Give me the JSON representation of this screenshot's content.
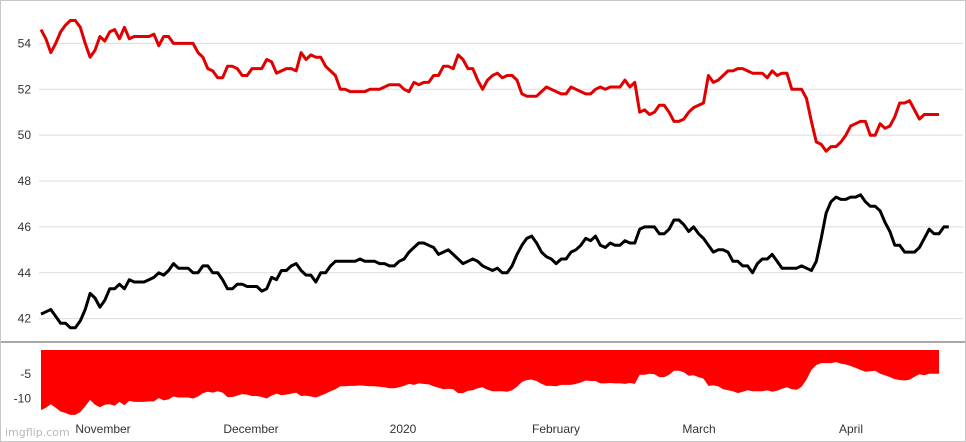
{
  "chart_data": [
    {
      "type": "line",
      "x_labels": [
        "November",
        "December",
        "2020",
        "February",
        "March",
        "April"
      ],
      "y_ticks": [
        42,
        44,
        46,
        48,
        50,
        52,
        54
      ],
      "ylim": [
        41.2,
        55.5
      ],
      "grid": true,
      "series": [
        {
          "color": "#e00000",
          "values": [
            54.6,
            54.2,
            53.6,
            54.0,
            54.5,
            54.8,
            55.0,
            55.0,
            54.7,
            54.0,
            53.4,
            53.7,
            54.3,
            54.1,
            54.5,
            54.6,
            54.2,
            54.7,
            54.2,
            54.3,
            54.3,
            54.3,
            54.3,
            54.4,
            53.9,
            54.3,
            54.3,
            54.0,
            54.0,
            54.0,
            54.0,
            54.0,
            53.6,
            53.4,
            52.9,
            52.8,
            52.5,
            52.5,
            53.0,
            53.0,
            52.9,
            52.6,
            52.6,
            52.9,
            52.9,
            52.9,
            53.3,
            53.2,
            52.7,
            52.8,
            52.9,
            52.9,
            52.8,
            53.6,
            53.3,
            53.5,
            53.4,
            53.4,
            53.0,
            52.8,
            52.6,
            52.0,
            52.0,
            51.9,
            51.9,
            51.9,
            51.9,
            52.0,
            52.0,
            52.0,
            52.1,
            52.2,
            52.2,
            52.2,
            52.0,
            51.9,
            52.3,
            52.2,
            52.3,
            52.3,
            52.6,
            52.6,
            53.0,
            53.0,
            52.9,
            53.5,
            53.3,
            52.9,
            52.9,
            52.4,
            52.0,
            52.4,
            52.6,
            52.7,
            52.5,
            52.6,
            52.6,
            52.4,
            51.8,
            51.7,
            51.7,
            51.7,
            51.9,
            52.1,
            52.0,
            51.9,
            51.8,
            51.8,
            52.1,
            52.0,
            51.9,
            51.8,
            51.8,
            52.0,
            52.1,
            52.0,
            52.1,
            52.1,
            52.1,
            52.4,
            52.1,
            52.3,
            51.0,
            51.1,
            50.9,
            51.0,
            51.3,
            51.3,
            51.0,
            50.6,
            50.6,
            50.7,
            51.0,
            51.2,
            51.3,
            51.4,
            52.6,
            52.3,
            52.4,
            52.6,
            52.8,
            52.8,
            52.9,
            52.9,
            52.8,
            52.7,
            52.7,
            52.7,
            52.5,
            52.8,
            52.6,
            52.7,
            52.7,
            52.0,
            52.0,
            52.0,
            51.6,
            50.6,
            49.7,
            49.6,
            49.3,
            49.5,
            49.5,
            49.7,
            50.0,
            50.4,
            50.5,
            50.6,
            50.6,
            50.0,
            50.0,
            50.5,
            50.3,
            50.4,
            50.8,
            51.4,
            51.4,
            51.5,
            51.1,
            50.7,
            50.9,
            50.9,
            50.9,
            50.9
          ]
        },
        {
          "color": "#000000",
          "values": [
            42.2,
            42.3,
            42.4,
            42.1,
            41.8,
            41.8,
            41.6,
            41.6,
            41.9,
            42.4,
            43.1,
            42.9,
            42.5,
            42.8,
            43.3,
            43.3,
            43.5,
            43.3,
            43.7,
            43.6,
            43.6,
            43.6,
            43.7,
            43.8,
            44.0,
            43.9,
            44.1,
            44.4,
            44.2,
            44.2,
            44.2,
            44.0,
            44.0,
            44.3,
            44.3,
            44.0,
            44.0,
            43.7,
            43.3,
            43.3,
            43.5,
            43.5,
            43.4,
            43.4,
            43.4,
            43.2,
            43.3,
            43.8,
            43.7,
            44.1,
            44.1,
            44.3,
            44.4,
            44.1,
            43.9,
            43.9,
            43.6,
            44.0,
            44.0,
            44.3,
            44.5,
            44.5,
            44.5,
            44.5,
            44.5,
            44.6,
            44.5,
            44.5,
            44.5,
            44.4,
            44.4,
            44.3,
            44.3,
            44.5,
            44.6,
            44.9,
            45.1,
            45.3,
            45.3,
            45.2,
            45.1,
            44.8,
            44.9,
            45.0,
            44.8,
            44.6,
            44.4,
            44.5,
            44.6,
            44.5,
            44.3,
            44.2,
            44.1,
            44.2,
            44.0,
            44.0,
            44.3,
            44.8,
            45.2,
            45.5,
            45.6,
            45.3,
            44.9,
            44.7,
            44.6,
            44.4,
            44.6,
            44.6,
            44.9,
            45.0,
            45.2,
            45.5,
            45.4,
            45.6,
            45.2,
            45.1,
            45.3,
            45.2,
            45.2,
            45.4,
            45.3,
            45.3,
            45.9,
            46.0,
            46.0,
            46.0,
            45.7,
            45.7,
            45.9,
            46.3,
            46.3,
            46.1,
            45.8,
            46.0,
            45.7,
            45.5,
            45.2,
            44.9,
            45.0,
            45.0,
            44.9,
            44.5,
            44.5,
            44.3,
            44.3,
            44.0,
            44.4,
            44.6,
            44.6,
            44.8,
            44.5,
            44.2,
            44.2,
            44.2,
            44.2,
            44.3,
            44.2,
            44.1,
            44.5,
            45.5,
            46.6,
            47.1,
            47.3,
            47.2,
            47.2,
            47.3,
            47.3,
            47.4,
            47.1,
            46.9,
            46.9,
            46.7,
            46.2,
            45.8,
            45.2,
            45.2,
            44.9,
            44.9,
            44.9,
            45.1,
            45.5,
            45.9,
            45.7,
            45.7,
            46.0,
            46.0
          ]
        }
      ]
    },
    {
      "type": "area",
      "y_ticks": [
        -5,
        -10
      ],
      "ylim": [
        -13,
        0
      ],
      "color": "#ff0000",
      "values": [
        -12.4,
        -11.9,
        -11.2,
        -11.9,
        -12.7,
        -13.0,
        -13.4,
        -13.4,
        -12.8,
        -11.6,
        -10.3,
        -11.3,
        -11.8,
        -11.3,
        -11.2,
        -11.5,
        -10.7,
        -11.4,
        -10.5,
        -10.7,
        -10.7,
        -10.7,
        -10.6,
        -10.6,
        -9.9,
        -10.4,
        -10.2,
        -9.6,
        -9.8,
        -9.8,
        -9.8,
        -10.0,
        -9.6,
        -8.9,
        -8.6,
        -8.8,
        -8.5,
        -8.8,
        -9.7,
        -9.7,
        -9.4,
        -9.1,
        -9.2,
        -9.5,
        -9.5,
        -9.7,
        -10.0,
        -9.4,
        -9.0,
        -9.3,
        -9.2,
        -9.0,
        -8.8,
        -9.5,
        -9.4,
        -9.6,
        -9.8,
        -9.4,
        -9.0,
        -8.5,
        -8.1,
        -7.5,
        -7.5,
        -7.4,
        -7.4,
        -7.3,
        -7.4,
        -7.5,
        -7.5,
        -7.6,
        -7.7,
        -7.9,
        -7.9,
        -7.7,
        -7.4,
        -7.0,
        -7.2,
        -6.9,
        -7.0,
        -7.1,
        -7.5,
        -7.8,
        -8.1,
        -8.0,
        -8.1,
        -8.9,
        -8.9,
        -8.4,
        -8.3,
        -7.9,
        -7.7,
        -8.2,
        -8.5,
        -8.5,
        -8.5,
        -8.6,
        -8.3,
        -7.6,
        -6.6,
        -6.2,
        -6.1,
        -6.4,
        -7.0,
        -7.4,
        -7.4,
        -7.5,
        -7.2,
        -7.2,
        -7.2,
        -7.0,
        -6.7,
        -6.3,
        -6.4,
        -6.4,
        -6.9,
        -6.9,
        -6.8,
        -6.9,
        -6.9,
        -7.0,
        -6.8,
        -7.0,
        -5.1,
        -5.1,
        -4.9,
        -5.0,
        -5.6,
        -5.6,
        -5.1,
        -4.3,
        -4.3,
        -4.6,
        -5.3,
        -5.2,
        -5.6,
        -5.9,
        -7.4,
        -7.3,
        -7.5,
        -8.1,
        -8.3,
        -8.5,
        -8.9,
        -8.6,
        -8.3,
        -8.5,
        -8.5,
        -8.5,
        -8.3,
        -8.6,
        -8.4,
        -8.0,
        -7.7,
        -8.1,
        -8.2,
        -7.6,
        -6.1,
        -4.1,
        -3.1,
        -2.7,
        -2.7,
        -2.7,
        -2.5,
        -2.8,
        -3.0,
        -3.3,
        -3.7,
        -4.1,
        -4.5,
        -4.4,
        -4.3,
        -4.9,
        -5.2,
        -5.6,
        -6.0,
        -6.2,
        -6.3,
        -6.1,
        -5.5,
        -5.0,
        -5.2,
        -4.9,
        -4.9,
        -4.9
      ]
    }
  ],
  "watermark": "imgflip.com"
}
